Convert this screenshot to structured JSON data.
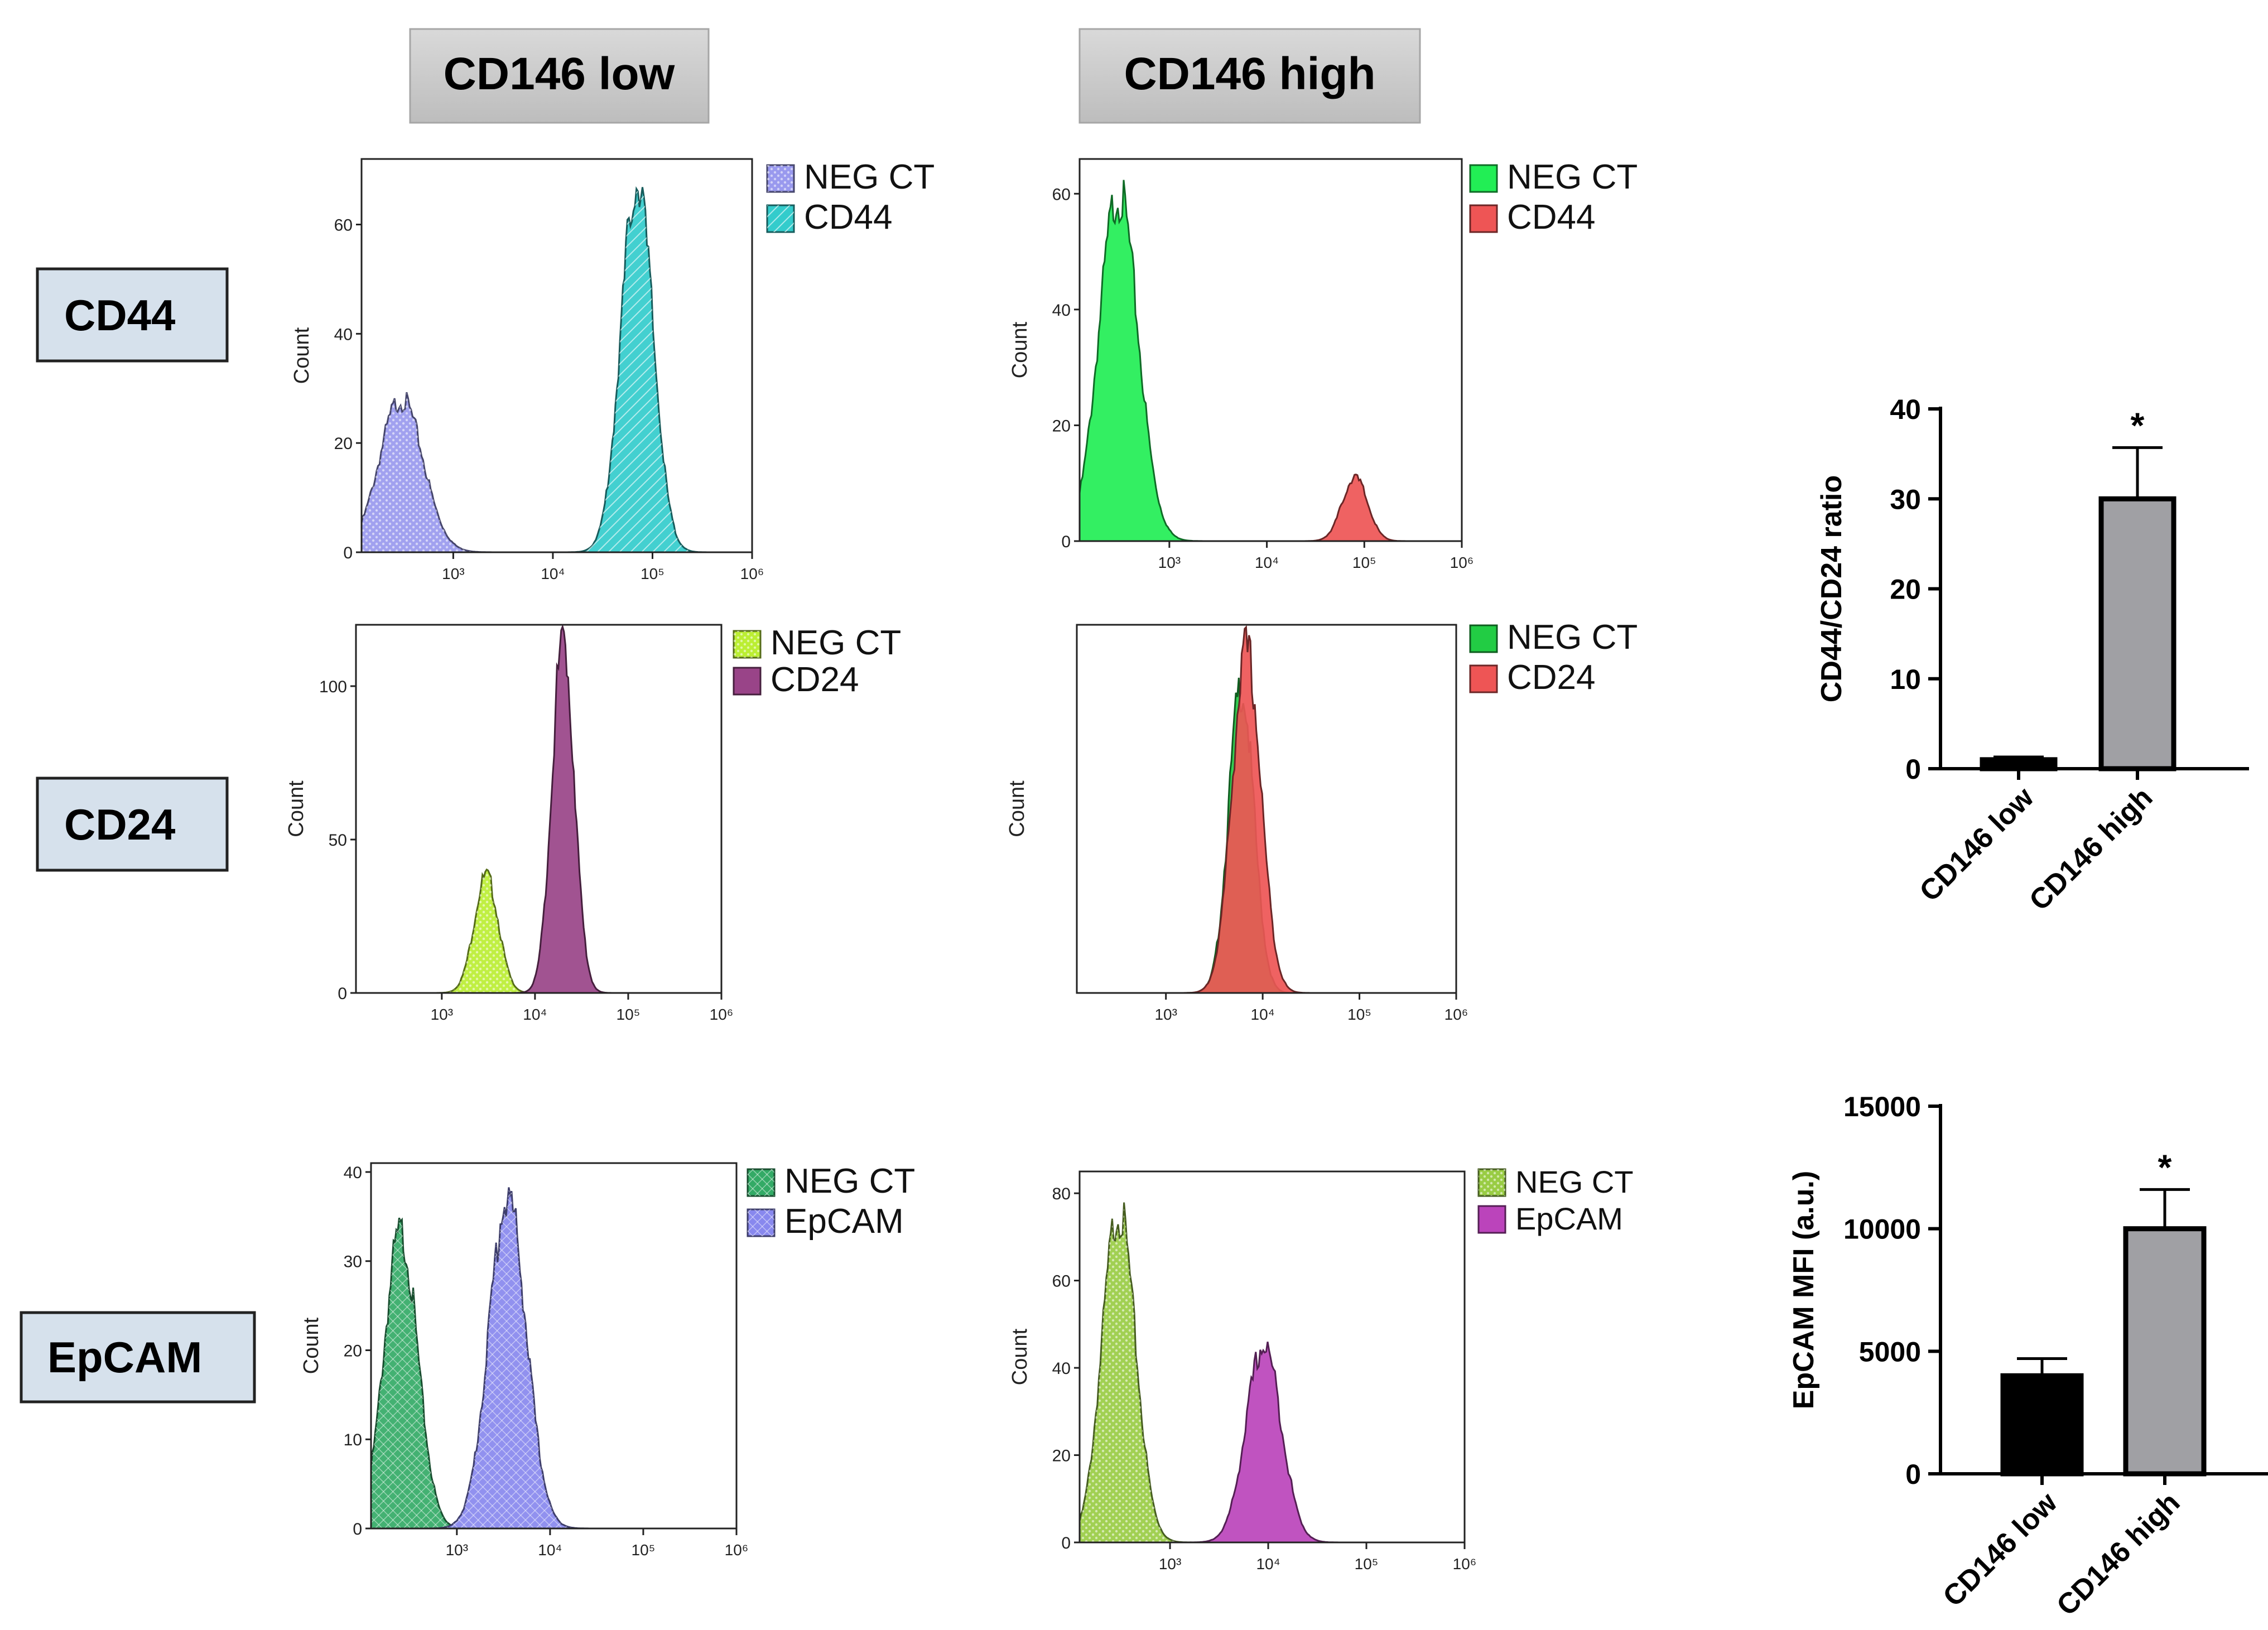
{
  "figure": {
    "column_headers": [
      "CD146 low",
      "CD146 high"
    ],
    "row_labels": [
      "CD44",
      "CD24",
      "EpCAM"
    ],
    "histogram_ylabel": "Count",
    "x_ticks": [
      "10³",
      "10⁴",
      "10⁵",
      "10⁶"
    ]
  },
  "chart_data": [
    {
      "type": "area",
      "panel": "CD44 / CD146 low",
      "ylabel": "Count",
      "yticks": [
        0,
        20,
        40,
        60
      ],
      "ylim": [
        0,
        72
      ],
      "xlog": true,
      "series": [
        {
          "name": "NEG CT",
          "color": "#9999ee",
          "pattern": "dots",
          "peaks": [
            {
              "x": 300,
              "height": 28,
              "sigma": 0.22
            }
          ]
        },
        {
          "name": "CD44",
          "color": "#33cccc",
          "pattern": "hatch",
          "peaks": [
            {
              "x": 70000,
              "height": 68,
              "sigma": 0.16
            }
          ]
        }
      ]
    },
    {
      "type": "area",
      "panel": "CD44 / CD146 high",
      "ylabel": "Count",
      "yticks": [
        0,
        20,
        40,
        60
      ],
      "ylim": [
        0,
        66
      ],
      "xlog": true,
      "series": [
        {
          "name": "NEG CT",
          "color": "#22ee55",
          "pattern": "solid",
          "peaks": [
            {
              "x": 300,
              "height": 60,
              "sigma": 0.2
            }
          ]
        },
        {
          "name": "CD44",
          "color": "#ee5555",
          "pattern": "solid",
          "peaks": [
            {
              "x": 80000,
              "height": 11,
              "sigma": 0.13
            }
          ]
        }
      ]
    },
    {
      "type": "area",
      "panel": "CD24 / CD146 low",
      "ylabel": "Count",
      "yticks": [
        0,
        50,
        100
      ],
      "ylim": [
        0,
        120
      ],
      "xlog": true,
      "series": [
        {
          "name": "NEG CT",
          "color": "#bbee33",
          "pattern": "dots",
          "peaks": [
            {
              "x": 3000,
              "height": 38,
              "sigma": 0.13
            }
          ]
        },
        {
          "name": "CD24",
          "color": "#994488",
          "pattern": "solid",
          "peaks": [
            {
              "x": 20000,
              "height": 115,
              "sigma": 0.12
            }
          ]
        }
      ]
    },
    {
      "type": "area",
      "panel": "CD24 / CD146 high",
      "ylabel": "Count",
      "ylim": [
        0,
        135
      ],
      "xlog": true,
      "series": [
        {
          "name": "NEG CT",
          "color": "#22cc44",
          "pattern": "solid",
          "peaks": [
            {
              "x": 6000,
              "height": 112,
              "sigma": 0.13
            }
          ]
        },
        {
          "name": "CD24",
          "color": "#ee5555",
          "pattern": "solid",
          "peaks": [
            {
              "x": 6800,
              "height": 125,
              "sigma": 0.15
            }
          ]
        }
      ]
    },
    {
      "type": "area",
      "panel": "EpCAM / CD146 low",
      "ylabel": "Count",
      "yticks": [
        0,
        10,
        20,
        30,
        40
      ],
      "ylim": [
        0,
        41
      ],
      "xlog": true,
      "series": [
        {
          "name": "NEG CT",
          "color": "#33aa66",
          "pattern": "cross",
          "peaks": [
            {
              "x": 250,
              "height": 33,
              "sigma": 0.18
            }
          ]
        },
        {
          "name": "EpCAM",
          "color": "#8888ee",
          "pattern": "cross",
          "peaks": [
            {
              "x": 3500,
              "height": 37,
              "sigma": 0.2
            }
          ]
        }
      ]
    },
    {
      "type": "area",
      "panel": "EpCAM / CD146 high",
      "ylabel": "Count",
      "yticks": [
        0,
        20,
        40,
        60,
        80
      ],
      "ylim": [
        0,
        85
      ],
      "xlog": true,
      "series": [
        {
          "name": "NEG CT",
          "color": "#99cc44",
          "pattern": "dots",
          "peaks": [
            {
              "x": 300,
              "height": 76,
              "sigma": 0.17
            }
          ]
        },
        {
          "name": "EpCAM",
          "color": "#bb44bb",
          "pattern": "solid",
          "peaks": [
            {
              "x": 9000,
              "height": 45,
              "sigma": 0.18
            }
          ]
        }
      ]
    },
    {
      "type": "bar",
      "categories": [
        "CD146 low",
        "CD146 high"
      ],
      "values": [
        1,
        30
      ],
      "errors": [
        0.3,
        5.7
      ],
      "colors": [
        "#000000",
        "#a0a0a4"
      ],
      "significance": [
        "",
        "*"
      ],
      "ylabel": "CD44/CD24 ratio",
      "ylim": [
        0,
        40
      ],
      "yticks": [
        0,
        10,
        20,
        30,
        40
      ]
    },
    {
      "type": "bar",
      "categories": [
        "CD146 low",
        "CD146 high"
      ],
      "values": [
        4000,
        10000
      ],
      "errors": [
        700,
        1600
      ],
      "colors": [
        "#000000",
        "#a0a0a4"
      ],
      "significance": [
        "",
        "*"
      ],
      "ylabel": "EpCAM MFI (a.u.)",
      "ylim": [
        0,
        15000
      ],
      "yticks": [
        0,
        5000,
        10000,
        15000
      ]
    }
  ]
}
